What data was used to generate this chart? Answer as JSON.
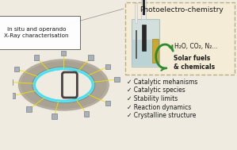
{
  "bg_color": "#f0ebe0",
  "right_panel_bg": "#f5edd5",
  "right_panel_border": "#b8a878",
  "title_text": "Photoelectro-chemistry",
  "title_fontsize": 6.5,
  "label_insitu": "In situ and operando\nX-Ray characterisation",
  "label_insitu_fontsize": 5.2,
  "checklist": [
    "✓ Catalytic mehanisms",
    "✓ Catalytic species",
    "✓ Stability limits",
    "✓ Reaction dynamics",
    "✓ Crystalline structure"
  ],
  "checklist_fontsize": 5.5,
  "h2o_label": "H₂O, CO₂, N₂...",
  "solar_label": "Solar fuels\n& chemicals",
  "arrow_color": "#2d8a2d",
  "ring_outer_color": "#a8a090",
  "ring_mid_color": "#989088",
  "ring_inner_color": "#888078",
  "ring_glow_color": "#40e8ff",
  "cube_color": "#a8b0b8",
  "cube_edge_color": "#788088",
  "yellow_line_color": "#f0e000",
  "cell_body_color": "#c0d8e0",
  "cell_border_color": "#90b0b8",
  "electrode_white": "#e8e8e8",
  "electrode_dark": "#282828",
  "electrode_gold": "#d4a820",
  "liquid_color": "#a8c8d0"
}
